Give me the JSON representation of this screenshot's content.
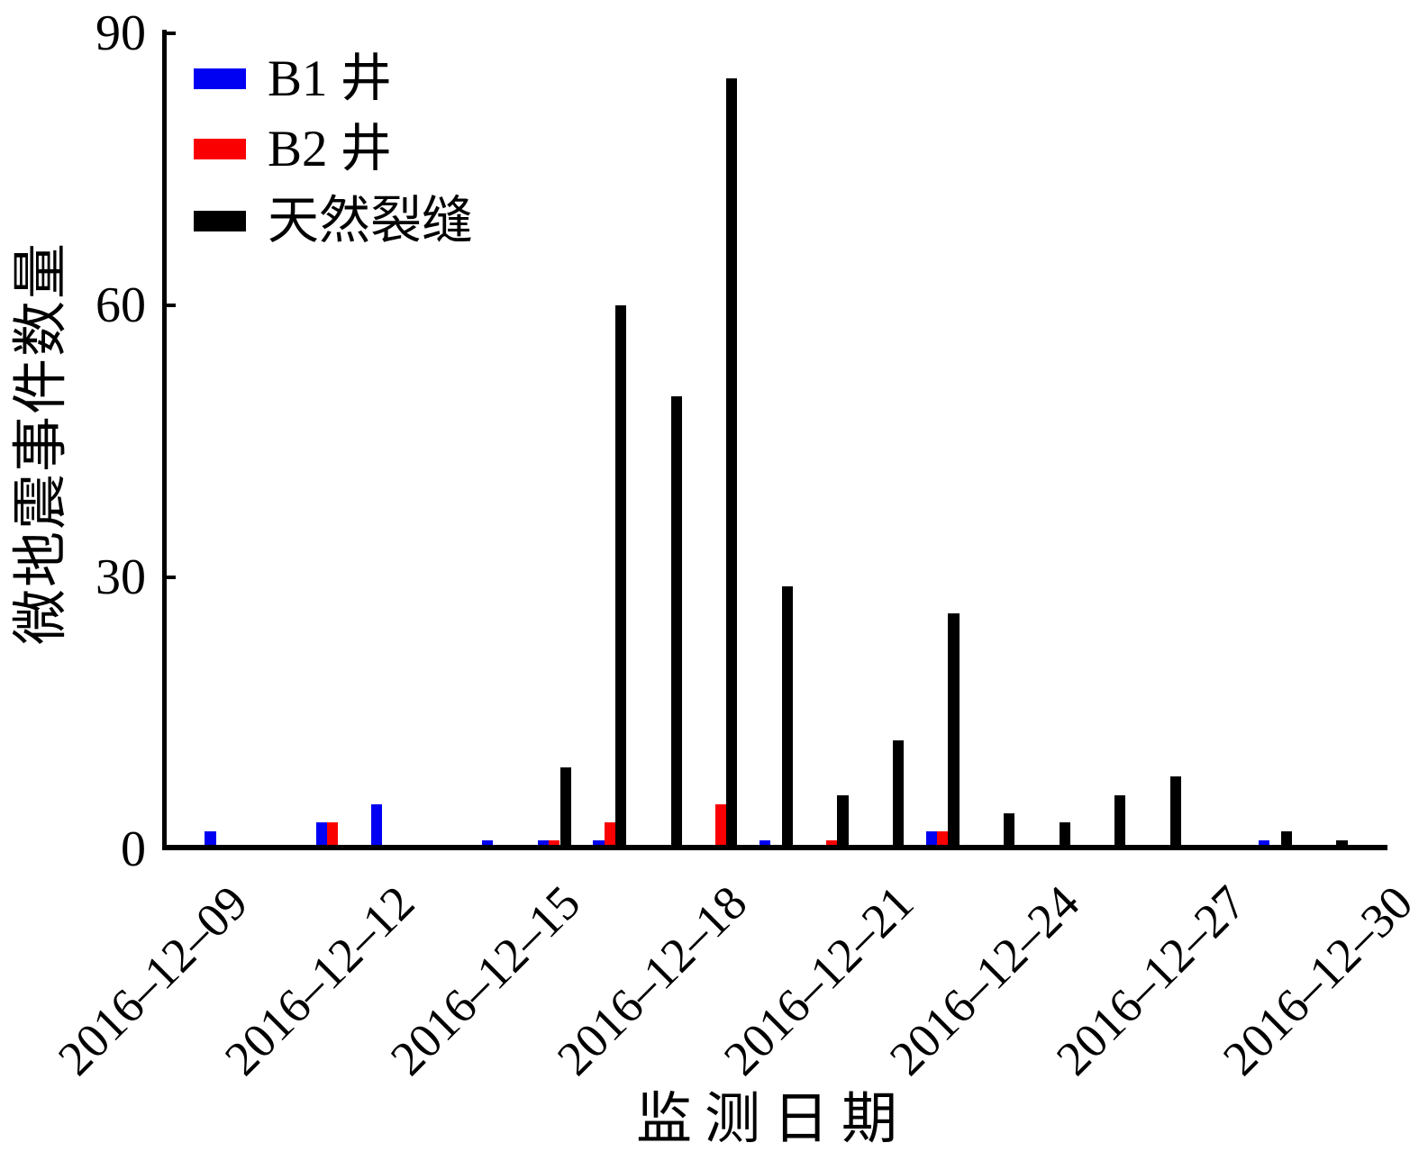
{
  "chart_data": {
    "type": "bar",
    "title": "",
    "xlabel": "监测日期",
    "ylabel": "微地震事件数量",
    "ylim": [
      0,
      90
    ],
    "yticks": [
      0,
      30,
      60,
      90
    ],
    "grid": false,
    "legend_position": "upper-left-inside",
    "categories": [
      "2016-12-09",
      "2016-12-10",
      "2016-12-11",
      "2016-12-12",
      "2016-12-13",
      "2016-12-14",
      "2016-12-15",
      "2016-12-16",
      "2016-12-17",
      "2016-12-18",
      "2016-12-19",
      "2016-12-20",
      "2016-12-21",
      "2016-12-22",
      "2016-12-23",
      "2016-12-24",
      "2016-12-25",
      "2016-12-26",
      "2016-12-27",
      "2016-12-28",
      "2016-12-29",
      "2016-12-30"
    ],
    "xtick_indices": [
      0,
      3,
      6,
      9,
      12,
      15,
      18,
      21
    ],
    "xtick_labels": [
      "2016–12–09",
      "2016–12–12",
      "2016–12–15",
      "2016–12–18",
      "2016–12–21",
      "2016–12–24",
      "2016–12–27",
      "2016–12–30"
    ],
    "series": [
      {
        "name": "B1 井",
        "color": "#0000f2",
        "values": [
          2,
          0,
          3,
          5,
          0,
          1,
          1,
          1,
          0,
          0,
          1,
          0,
          0,
          2,
          0,
          0,
          0,
          0,
          0,
          1,
          0,
          0
        ]
      },
      {
        "name": "B2 井",
        "color": "#fb0000",
        "values": [
          0,
          0,
          3,
          0,
          0,
          0,
          1,
          3,
          0,
          5,
          0,
          1,
          0,
          2,
          0,
          0,
          0,
          0,
          0,
          0,
          0,
          0
        ]
      },
      {
        "name": "天然裂缝",
        "color": "#000000",
        "values": [
          0,
          0,
          0,
          0,
          0,
          0,
          9,
          60,
          50,
          85,
          29,
          6,
          12,
          26,
          4,
          3,
          6,
          8,
          0,
          2,
          1,
          0
        ]
      }
    ]
  },
  "colors": {
    "axis": "#000000",
    "background": "#ffffff",
    "text": "#000000"
  }
}
